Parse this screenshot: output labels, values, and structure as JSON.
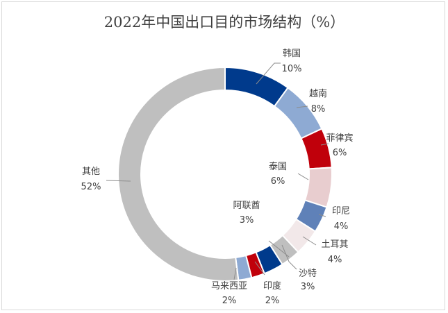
{
  "chart_data": {
    "type": "pie",
    "variant": "donut",
    "title": "2022年中国出口目的市场结构（%）",
    "categories": [
      "韩国",
      "越南",
      "菲律宾",
      "泰国",
      "印尼",
      "土耳其",
      "沙特",
      "阿联酋",
      "印度",
      "马来西亚",
      "其他"
    ],
    "values": [
      10,
      8,
      6,
      6,
      4,
      4,
      3,
      3,
      2,
      2,
      52
    ],
    "value_labels": [
      "10%",
      "8%",
      "6%",
      "6%",
      "4%",
      "4%",
      "3%",
      "3%",
      "2%",
      "2%",
      "52%"
    ],
    "colors": [
      "#003a8c",
      "#8eaad3",
      "#c0000b",
      "#e8cdcf",
      "#5f81b8",
      "#f2e8e9",
      "#bfbfbf",
      "#003a8c",
      "#c0000b",
      "#8eaad3",
      "#bfbfbf"
    ],
    "start_angle_deg": 0,
    "direction": "clockwise"
  }
}
